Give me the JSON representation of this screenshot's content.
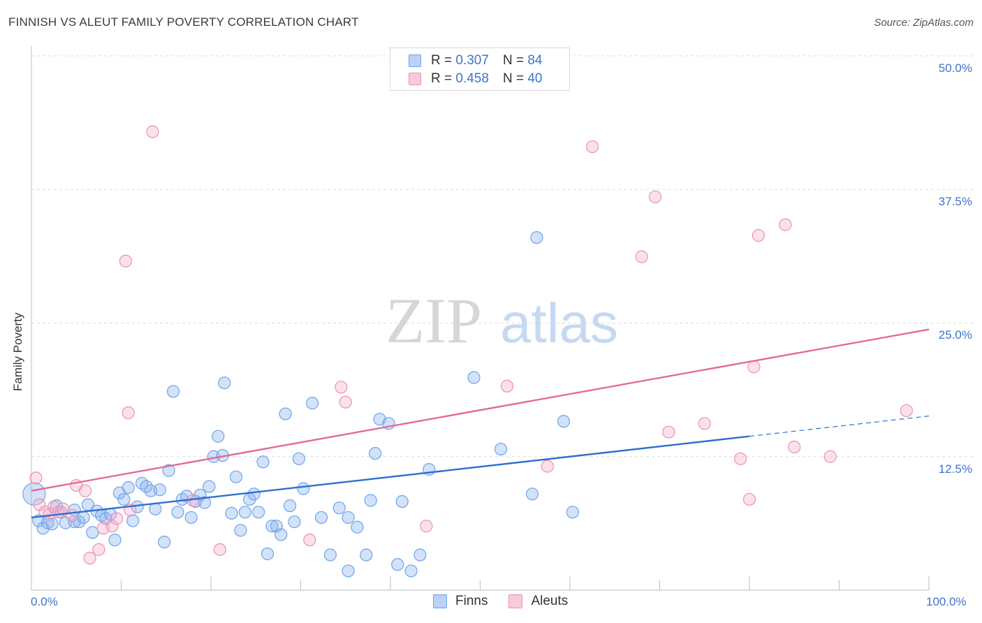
{
  "header": {
    "title": "FINNISH VS ALEUT FAMILY POVERTY CORRELATION CHART",
    "source": "Source: ZipAtlas.com"
  },
  "legend_top": {
    "rows": [
      {
        "r_label": "R = ",
        "r_value": "0.307",
        "n_label": "N = ",
        "n_value": "84",
        "color": "#6fa3e8",
        "fill": "#b9d2f5"
      },
      {
        "r_label": "R = ",
        "r_value": "0.458",
        "n_label": "N = ",
        "n_value": "40",
        "color": "#ee8fb0",
        "fill": "#f8cadb"
      }
    ]
  },
  "legend_bottom": {
    "finns": "Finns",
    "aleuts": "Aleuts"
  },
  "watermark": {
    "zip": "ZIP",
    "atlas": "atlas"
  },
  "chart_data": {
    "type": "scatter",
    "ylabel": "Family Poverty",
    "x_tick_labels": [
      "0.0%",
      "100.0%"
    ],
    "y_tick_labels": [
      "50.0%",
      "37.5%",
      "25.0%",
      "12.5%"
    ],
    "y_ticks": [
      50,
      37.5,
      25,
      12.5
    ],
    "xlim": [
      0,
      100
    ],
    "ylim": [
      0,
      51
    ],
    "grid": true,
    "series": [
      {
        "name": "Finns",
        "color": "#6fa3e8",
        "fill": "rgba(137,180,238,0.38)",
        "points": [
          [
            0.3,
            9.0
          ],
          [
            0.8,
            6.5
          ],
          [
            1.3,
            5.8
          ],
          [
            1.8,
            6.3
          ],
          [
            2.3,
            6.2
          ],
          [
            2.8,
            7.9
          ],
          [
            3.3,
            7.3
          ],
          [
            3.8,
            6.3
          ],
          [
            4.8,
            6.4
          ],
          [
            4.8,
            7.5
          ],
          [
            5.3,
            6.4
          ],
          [
            5.8,
            6.8
          ],
          [
            6.3,
            8.0
          ],
          [
            6.8,
            5.4
          ],
          [
            7.3,
            7.4
          ],
          [
            7.8,
            7.0
          ],
          [
            8.3,
            6.7
          ],
          [
            8.8,
            7.1
          ],
          [
            9.3,
            4.7
          ],
          [
            9.8,
            9.1
          ],
          [
            10.3,
            8.5
          ],
          [
            10.8,
            9.6
          ],
          [
            11.3,
            6.5
          ],
          [
            11.8,
            7.8
          ],
          [
            12.3,
            10.0
          ],
          [
            12.8,
            9.7
          ],
          [
            13.3,
            9.3
          ],
          [
            13.8,
            7.6
          ],
          [
            14.3,
            9.4
          ],
          [
            14.8,
            4.5
          ],
          [
            15.3,
            11.2
          ],
          [
            15.8,
            18.6
          ],
          [
            16.3,
            7.3
          ],
          [
            16.8,
            8.5
          ],
          [
            17.3,
            8.8
          ],
          [
            17.8,
            6.8
          ],
          [
            18.3,
            8.3
          ],
          [
            18.8,
            8.9
          ],
          [
            19.3,
            8.2
          ],
          [
            19.8,
            9.7
          ],
          [
            20.3,
            12.5
          ],
          [
            20.8,
            14.4
          ],
          [
            21.3,
            12.6
          ],
          [
            21.5,
            19.4
          ],
          [
            22.3,
            7.2
          ],
          [
            22.8,
            10.6
          ],
          [
            23.3,
            5.6
          ],
          [
            23.8,
            7.3
          ],
          [
            24.3,
            8.5
          ],
          [
            24.8,
            9.0
          ],
          [
            25.3,
            7.3
          ],
          [
            25.8,
            12.0
          ],
          [
            26.3,
            3.4
          ],
          [
            26.8,
            6.0
          ],
          [
            27.3,
            6.0
          ],
          [
            27.8,
            5.2
          ],
          [
            28.3,
            16.5
          ],
          [
            28.8,
            7.9
          ],
          [
            29.3,
            6.4
          ],
          [
            29.8,
            12.3
          ],
          [
            30.3,
            9.5
          ],
          [
            31.3,
            17.5
          ],
          [
            32.3,
            6.8
          ],
          [
            33.3,
            3.3
          ],
          [
            34.3,
            7.7
          ],
          [
            35.3,
            6.8
          ],
          [
            35.3,
            1.8
          ],
          [
            36.3,
            5.9
          ],
          [
            37.3,
            3.3
          ],
          [
            37.8,
            8.4
          ],
          [
            38.3,
            12.8
          ],
          [
            38.8,
            16.0
          ],
          [
            39.8,
            15.6
          ],
          [
            40.8,
            2.4
          ],
          [
            41.3,
            8.3
          ],
          [
            42.3,
            1.8
          ],
          [
            43.3,
            3.3
          ],
          [
            44.3,
            11.3
          ],
          [
            49.3,
            19.9
          ],
          [
            52.3,
            13.2
          ],
          [
            55.8,
            9.0
          ],
          [
            56.3,
            33.0
          ],
          [
            59.3,
            15.8
          ],
          [
            60.3,
            7.3
          ]
        ]
      },
      {
        "name": "Aleuts",
        "color": "#ee8fb0",
        "fill": "rgba(244,175,202,0.38)",
        "points": [
          [
            0.5,
            10.5
          ],
          [
            0.9,
            8.0
          ],
          [
            1.5,
            7.3
          ],
          [
            2.0,
            7.1
          ],
          [
            2.5,
            7.8
          ],
          [
            3.0,
            7.3
          ],
          [
            3.5,
            7.6
          ],
          [
            4.5,
            7.0
          ],
          [
            5.0,
            9.8
          ],
          [
            6.0,
            9.3
          ],
          [
            6.5,
            3.0
          ],
          [
            7.5,
            3.8
          ],
          [
            8.0,
            5.8
          ],
          [
            9.0,
            6.0
          ],
          [
            9.5,
            6.7
          ],
          [
            10.5,
            30.8
          ],
          [
            10.8,
            16.6
          ],
          [
            11.0,
            7.5
          ],
          [
            13.5,
            42.9
          ],
          [
            18.0,
            8.4
          ],
          [
            21.0,
            3.8
          ],
          [
            31.0,
            4.7
          ],
          [
            34.5,
            19.0
          ],
          [
            35.0,
            17.6
          ],
          [
            44.0,
            6.0
          ],
          [
            53.0,
            19.1
          ],
          [
            57.5,
            11.6
          ],
          [
            62.5,
            41.5
          ],
          [
            68.0,
            31.2
          ],
          [
            69.5,
            36.8
          ],
          [
            71.0,
            14.8
          ],
          [
            75.0,
            15.6
          ],
          [
            79.0,
            12.3
          ],
          [
            80.0,
            8.5
          ],
          [
            80.5,
            20.9
          ],
          [
            81.0,
            33.2
          ],
          [
            84.0,
            34.2
          ],
          [
            85.0,
            13.4
          ],
          [
            89.0,
            12.5
          ],
          [
            97.5,
            16.8
          ]
        ]
      }
    ],
    "trendlines": [
      {
        "series": "Finns",
        "color": "#2f6fd0",
        "from": [
          0,
          6.8
        ],
        "to": [
          80,
          14.4
        ],
        "dashed_to": [
          100,
          16.3
        ]
      },
      {
        "series": "Aleuts",
        "color": "#e46a95",
        "from": [
          0,
          9.3
        ],
        "to": [
          100,
          24.4
        ]
      }
    ]
  }
}
